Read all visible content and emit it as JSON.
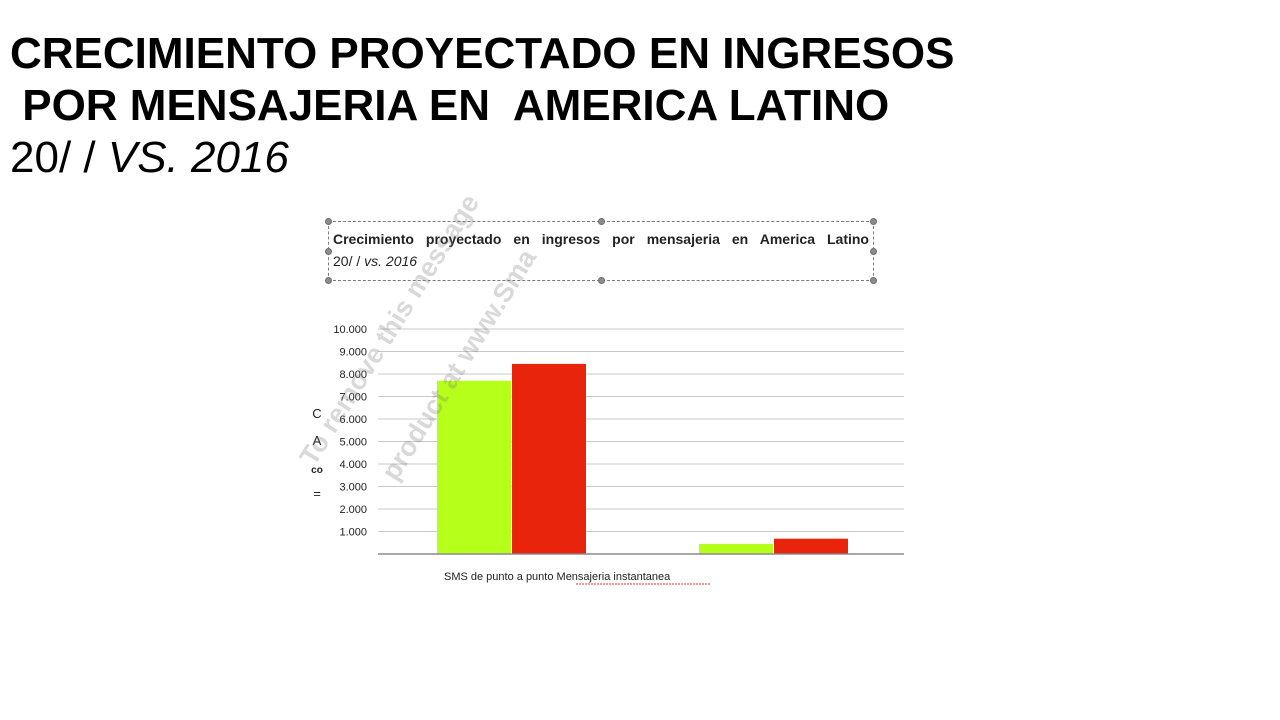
{
  "slide": {
    "title_line1": "CRECIMIENTO PROYECTADO EN INGRESOS",
    "title_line2": " POR MENSAJERIA EN  AMERICA LATINO",
    "title_line3_prefix": "20/ / ",
    "title_line3_italic": "VS. 2016"
  },
  "chart_header": {
    "line1": "Crecimiento proyectado en ingresos por mensajeria en America Latino",
    "line2_prefix": "20/ / ",
    "line2_italic": "vs. 2016"
  },
  "watermark": {
    "line1": "To remove this message",
    "line2": "product at www.Sma"
  },
  "chart_data": {
    "type": "bar",
    "categories": [
      "SMS de punto a punto",
      "Mensajeria instantanea"
    ],
    "x_label_text": "SMS de punto a punto Mensajeria instantanea",
    "series": [
      {
        "color": "#b5ff1a",
        "values": [
          7700,
          450
        ]
      },
      {
        "color": "#e8240c",
        "values": [
          8450,
          680
        ]
      }
    ],
    "ylim": [
      0,
      10000
    ],
    "yticks": [
      1000,
      2000,
      3000,
      4000,
      5000,
      6000,
      7000,
      8000,
      9000,
      10000
    ],
    "ytick_labels": [
      "1.000",
      "2.000",
      "3.000",
      "4.000",
      "5.000",
      "6.000",
      "7.000",
      "8.000",
      "9.000",
      "10.000"
    ],
    "ylabel_glyphs": [
      "C",
      "A",
      "co",
      "="
    ],
    "grid": true
  }
}
